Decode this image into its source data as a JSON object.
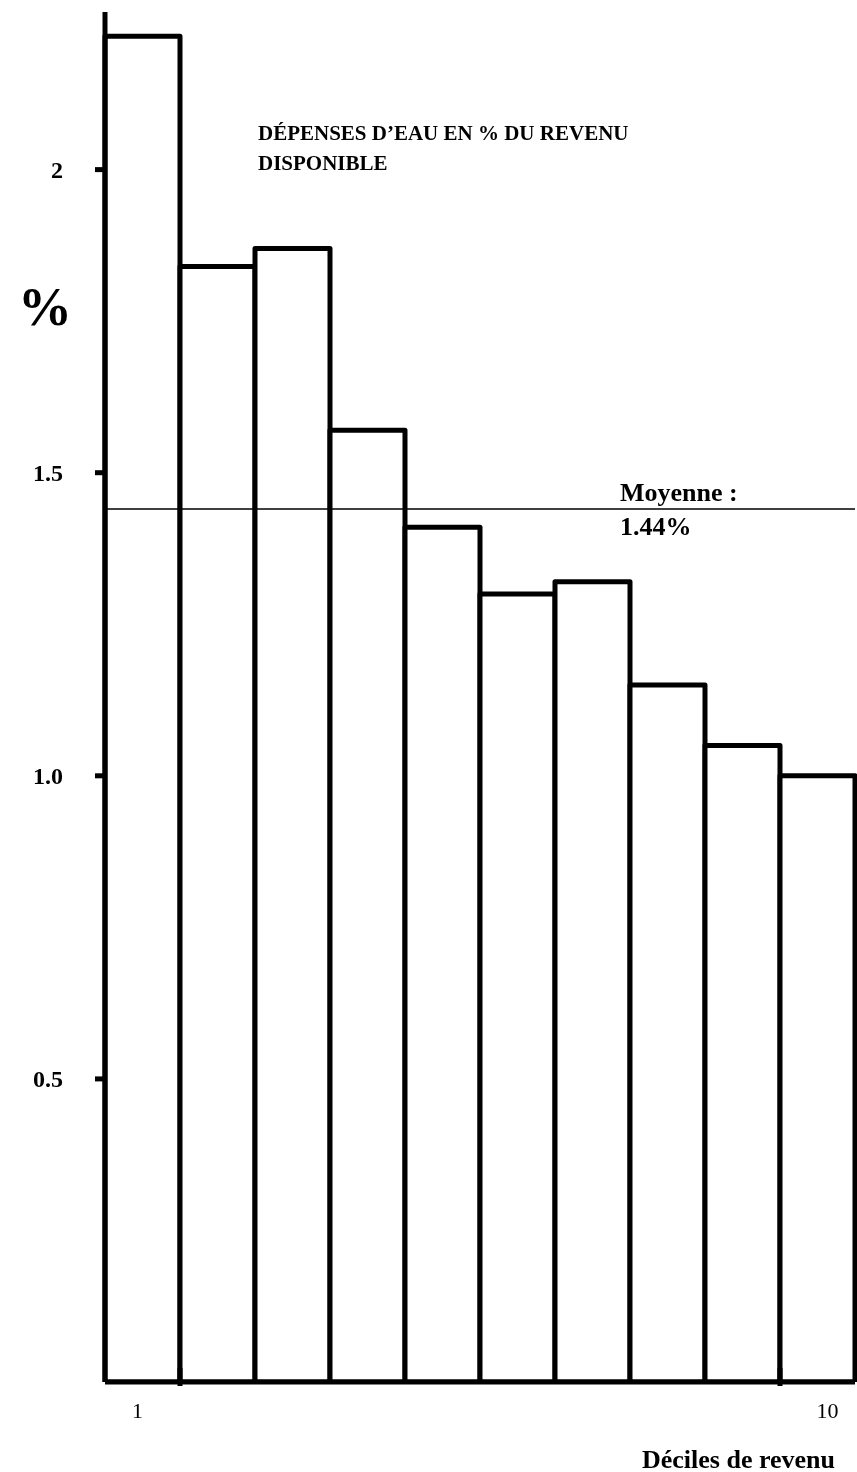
{
  "chart_data": {
    "type": "bar",
    "title": "DÉPENSES D’EAU EN % DU REVENU DISPONIBLE",
    "xlabel": "Déciles de revenu",
    "ylabel": "%",
    "categories": [
      "1",
      null,
      null,
      null,
      null,
      null,
      null,
      null,
      null,
      "10"
    ],
    "values": [
      2.22,
      1.84,
      1.87,
      1.57,
      1.41,
      1.3,
      1.32,
      1.15,
      1.05,
      1.0
    ],
    "color": "#000000",
    "ylim": [
      0,
      2.26
    ],
    "yticks": [
      0.5,
      {
        "value": 1,
        "label": "1.0"
      },
      {
        "value": 1.5,
        "label": "1.5"
      },
      2
    ],
    "ref_lines": [
      {
        "axis": "y",
        "value": 1.44,
        "label": "Moyenne : 1.44%",
        "color": "#000000"
      }
    ]
  }
}
